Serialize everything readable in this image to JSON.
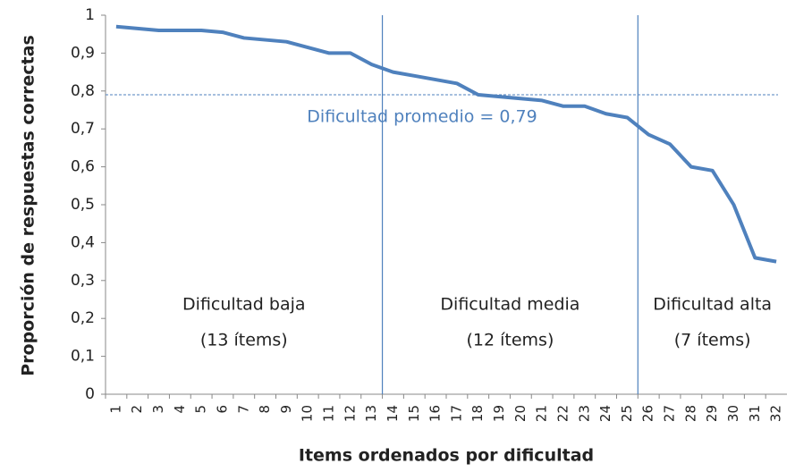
{
  "chart_data": {
    "type": "line",
    "xlabel": "Items ordenados por dificultad",
    "ylabel": "Proporción de respuestas correctas",
    "categories": [
      "1",
      "2",
      "3",
      "4",
      "5",
      "6",
      "7",
      "8",
      "9",
      "10",
      "11",
      "12",
      "13",
      "14",
      "15",
      "16",
      "17",
      "18",
      "19",
      "20",
      "21",
      "22",
      "23",
      "24",
      "25",
      "26",
      "27",
      "28",
      "29",
      "30",
      "31",
      "32"
    ],
    "series": [
      {
        "color": "#4f81bd",
        "values": [
          0.97,
          0.965,
          0.96,
          0.96,
          0.96,
          0.955,
          0.94,
          0.935,
          0.93,
          0.915,
          0.9,
          0.9,
          0.87,
          0.85,
          0.84,
          0.83,
          0.82,
          0.79,
          0.785,
          0.78,
          0.775,
          0.76,
          0.76,
          0.74,
          0.73,
          0.685,
          0.66,
          0.6,
          0.59,
          0.5,
          0.36,
          0.35
        ]
      }
    ],
    "ylim": [
      0,
      1
    ],
    "yticks": [
      0,
      {
        "value": 0.1,
        "label": "0,1"
      },
      {
        "value": 0.2,
        "label": "0,2"
      },
      {
        "value": 0.3,
        "label": "0,3"
      },
      {
        "value": 0.4,
        "label": "0,4"
      },
      {
        "value": 0.5,
        "label": "0,5"
      },
      {
        "value": 0.6,
        "label": "0,6"
      },
      {
        "value": 0.7,
        "label": "0,7"
      },
      {
        "value": 0.8,
        "label": "0,8"
      },
      {
        "value": 0.9,
        "label": "0,9"
      },
      1
    ],
    "mean": {
      "value": 0.79,
      "label": "Dificultad promedio = 0,79"
    },
    "regions": [
      {
        "label": "Dificultad baja",
        "note": "(13 ítems)",
        "from": 1,
        "to": 13
      },
      {
        "label": "Dificultad media",
        "note": "(12 ítems)",
        "from": 14,
        "to": 25
      },
      {
        "label": "Dificultad alta",
        "note": "(7 ítems)",
        "from": 26,
        "to": 32
      }
    ]
  }
}
